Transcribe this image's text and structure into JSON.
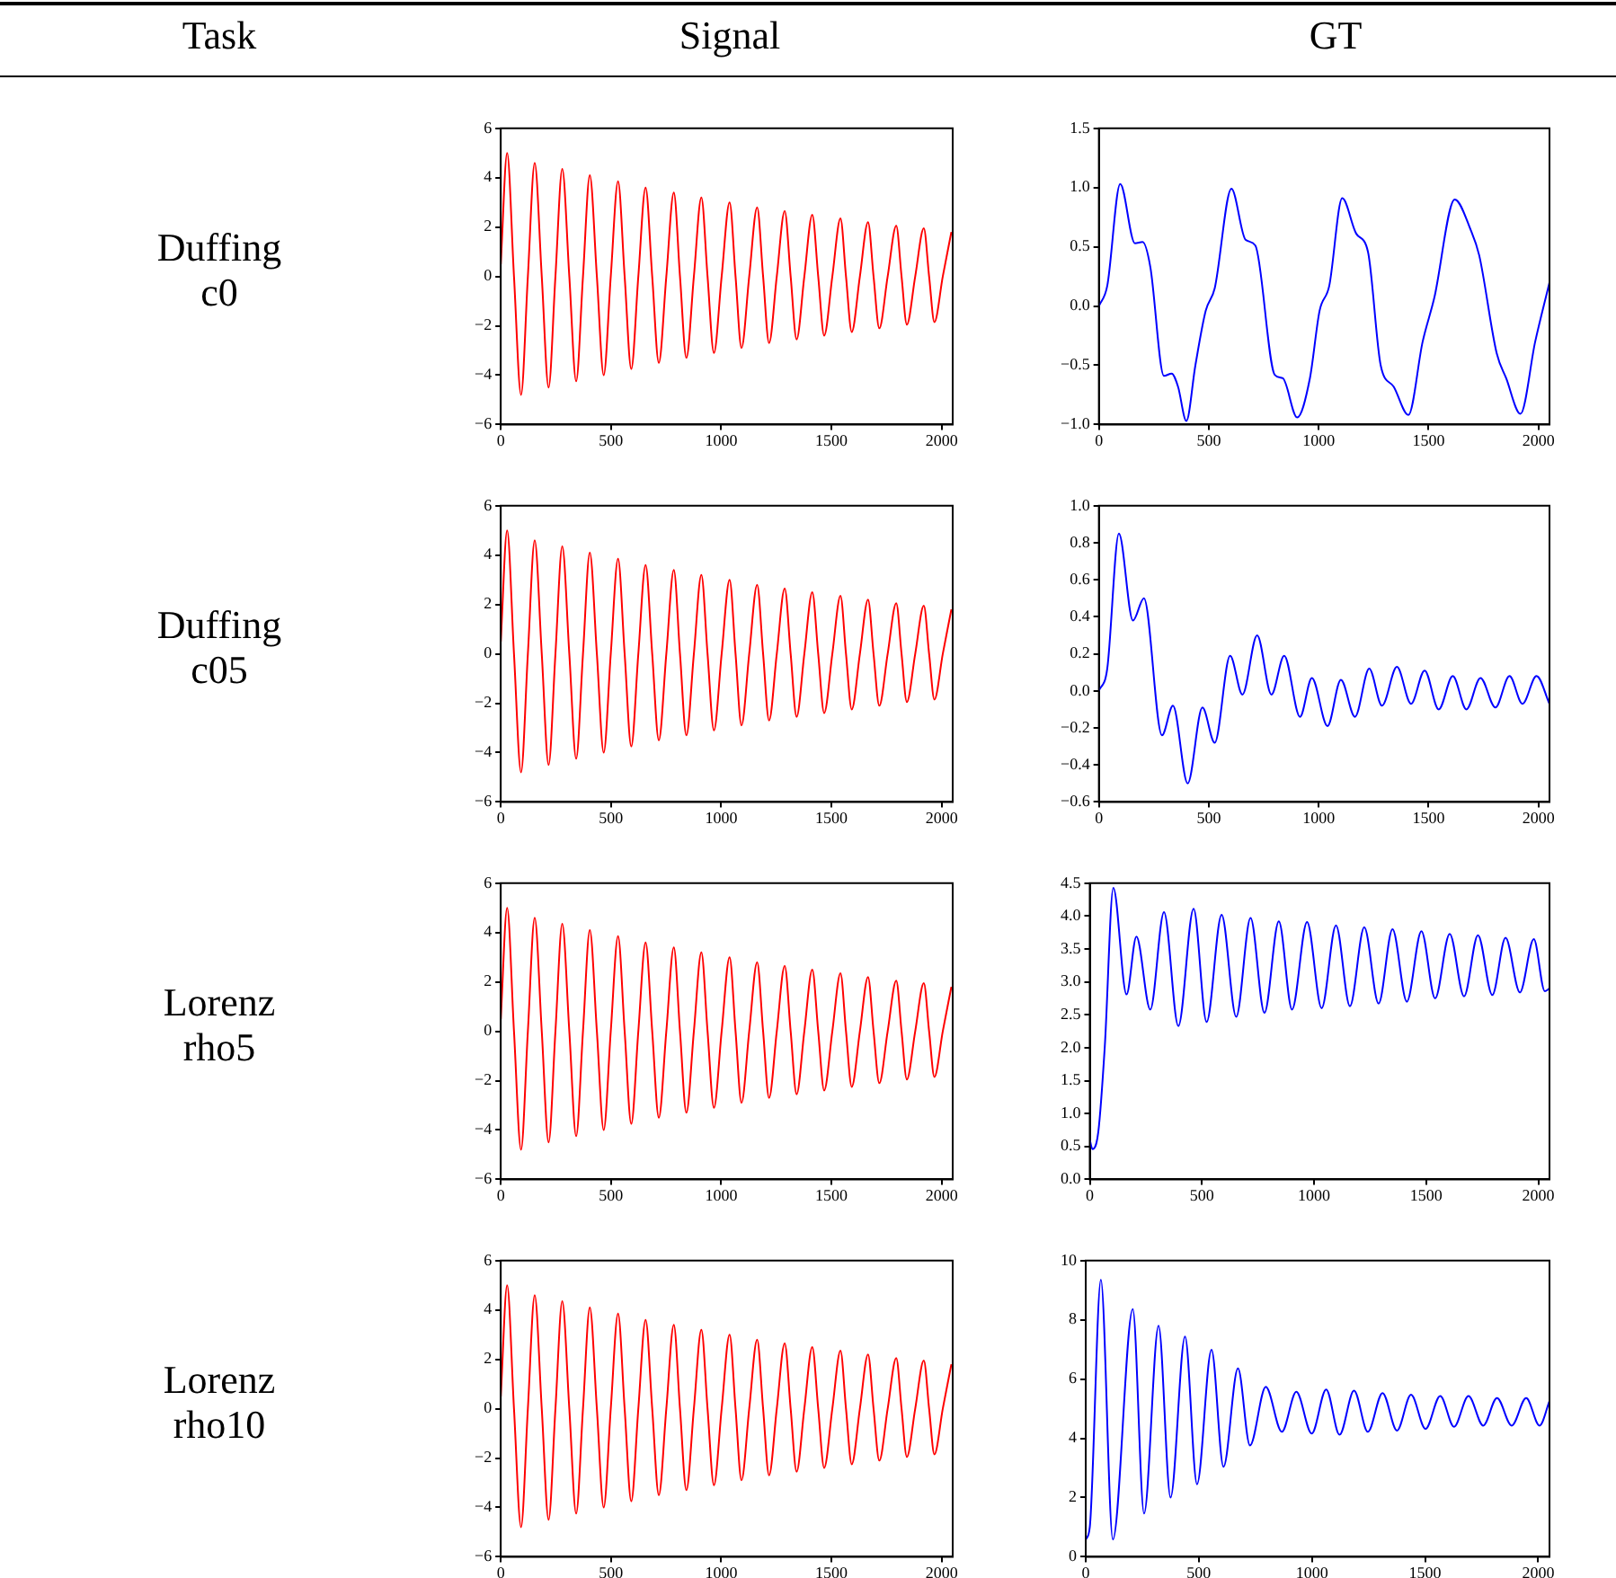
{
  "chart_data": [
    {
      "type": "other",
      "annotations": [
        "Task",
        "Signal",
        "GT",
        "Duffing c0",
        "Duffing c05",
        "Lorenz rho5",
        "Lorenz rho10"
      ]
    },
    {
      "type": "line",
      "color": "#ff0000",
      "xlim": [
        0,
        2050
      ],
      "xticks": [
        0,
        500,
        1000,
        1500,
        2000
      ],
      "ylim": [
        -6,
        6
      ],
      "yticks": [
        {
          "value": -6,
          "label": "−6"
        },
        {
          "value": -4,
          "label": "−4"
        },
        {
          "value": -2,
          "label": "−2"
        },
        0,
        2,
        4,
        6
      ],
      "x": [
        0,
        29,
        60,
        92,
        123,
        154,
        186,
        217,
        248,
        279,
        311,
        342,
        373,
        404,
        436,
        467,
        499,
        532,
        562,
        592,
        624,
        657,
        687,
        717,
        751,
        785,
        813,
        842,
        876,
        910,
        938,
        967,
        1002,
        1038,
        1065,
        1092,
        1127,
        1163,
        1190,
        1217,
        1252,
        1288,
        1315,
        1342,
        1377,
        1413,
        1440,
        1467,
        1504,
        1541,
        1566,
        1592,
        1629,
        1666,
        1691,
        1717,
        1755,
        1794,
        1818,
        1842,
        1880,
        1919,
        1943,
        1967,
        2005,
        2044
      ],
      "values": [
        0.5,
        5.0,
        0,
        -4.8,
        0,
        4.6,
        0,
        -4.5,
        0,
        4.35,
        0,
        -4.25,
        0,
        4.1,
        0,
        -4.0,
        0,
        3.85,
        0,
        -3.75,
        0,
        3.6,
        0,
        -3.5,
        0,
        3.4,
        0,
        -3.3,
        0,
        3.2,
        0,
        -3.1,
        0,
        3.0,
        0,
        -2.9,
        0,
        2.8,
        0,
        -2.7,
        0,
        2.65,
        0,
        -2.55,
        0,
        2.5,
        0,
        -2.4,
        0,
        2.35,
        0,
        -2.25,
        0,
        2.2,
        0,
        -2.1,
        0,
        2.05,
        0,
        -1.95,
        0,
        1.95,
        0,
        -1.85,
        0,
        1.8
      ]
    },
    {
      "type": "line",
      "color": "#0000ff",
      "xlim": [
        0,
        2050
      ],
      "xticks": [
        0,
        500,
        1000,
        1500,
        2000
      ],
      "ylim": [
        -1,
        1.5
      ],
      "yticks": [
        {
          "value": -1,
          "label": "−1.0"
        },
        {
          "value": -0.5,
          "label": "−0.5"
        },
        {
          "value": 0,
          "label": "0.0"
        },
        0.5,
        {
          "value": 1,
          "label": "1.0"
        },
        1.5
      ],
      "x": [
        0,
        38,
        97,
        164,
        199,
        234,
        296,
        331,
        360,
        398,
        439,
        486,
        527,
        603,
        667,
        712,
        800,
        837,
        902,
        960,
        1004,
        1048,
        1107,
        1171,
        1224,
        1282,
        1341,
        1408,
        1473,
        1526,
        1619,
        1692,
        1730,
        1810,
        1853,
        1918,
        1985,
        2050
      ],
      "values": [
        0,
        0.17,
        1.03,
        0.53,
        0.54,
        0.33,
        -0.59,
        -0.57,
        -0.68,
        -0.97,
        -0.5,
        -0.04,
        0.15,
        0.99,
        0.56,
        0.51,
        -0.58,
        -0.61,
        -0.94,
        -0.61,
        -0.04,
        0.17,
        0.91,
        0.61,
        0.46,
        -0.5,
        -0.68,
        -0.92,
        -0.3,
        0.07,
        0.9,
        0.64,
        0.43,
        -0.4,
        -0.61,
        -0.91,
        -0.3,
        0.2
      ]
    },
    {
      "type": "line",
      "color": "#ff0000",
      "xlim": [
        0,
        2050
      ],
      "xticks": [
        0,
        500,
        1000,
        1500,
        2000
      ],
      "ylim": [
        -6,
        6
      ],
      "yticks": [
        {
          "value": -6,
          "label": "−6"
        },
        {
          "value": -4,
          "label": "−4"
        },
        {
          "value": -2,
          "label": "−2"
        },
        0,
        2,
        4,
        6
      ],
      "x": [
        0,
        29,
        60,
        92,
        123,
        154,
        186,
        217,
        248,
        279,
        311,
        342,
        373,
        404,
        436,
        467,
        499,
        532,
        562,
        592,
        624,
        657,
        687,
        717,
        751,
        785,
        813,
        842,
        876,
        910,
        938,
        967,
        1002,
        1038,
        1065,
        1092,
        1127,
        1163,
        1190,
        1217,
        1252,
        1288,
        1315,
        1342,
        1377,
        1413,
        1440,
        1467,
        1504,
        1541,
        1566,
        1592,
        1629,
        1666,
        1691,
        1717,
        1755,
        1794,
        1818,
        1842,
        1880,
        1919,
        1943,
        1967,
        2005,
        2044
      ],
      "values": [
        0.5,
        5.0,
        0,
        -4.8,
        0,
        4.6,
        0,
        -4.5,
        0,
        4.35,
        0,
        -4.25,
        0,
        4.1,
        0,
        -4.0,
        0,
        3.85,
        0,
        -3.75,
        0,
        3.6,
        0,
        -3.5,
        0,
        3.4,
        0,
        -3.3,
        0,
        3.2,
        0,
        -3.1,
        0,
        3.0,
        0,
        -2.9,
        0,
        2.8,
        0,
        -2.7,
        0,
        2.65,
        0,
        -2.55,
        0,
        2.5,
        0,
        -2.4,
        0,
        2.35,
        0,
        -2.25,
        0,
        2.2,
        0,
        -2.1,
        0,
        2.05,
        0,
        -1.95,
        0,
        1.95,
        0,
        -1.85,
        0,
        1.8
      ]
    },
    {
      "type": "line",
      "color": "#0000ff",
      "xlim": [
        0,
        2050
      ],
      "xticks": [
        0,
        500,
        1000,
        1500,
        2000
      ],
      "ylim": [
        -0.6,
        1.0
      ],
      "yticks": [
        {
          "value": -0.6,
          "label": "−0.6"
        },
        {
          "value": -0.4,
          "label": "−0.4"
        },
        {
          "value": -0.2,
          "label": "−0.2"
        },
        {
          "value": 0,
          "label": "0.0"
        },
        0.2,
        0.4,
        0.6,
        0.8,
        {
          "value": 1,
          "label": "1.0"
        }
      ],
      "x": [
        0,
        38,
        91,
        155,
        205,
        287,
        337,
        404,
        471,
        527,
        597,
        653,
        720,
        785,
        843,
        915,
        969,
        1040,
        1101,
        1165,
        1230,
        1288,
        1356,
        1420,
        1482,
        1546,
        1610,
        1672,
        1736,
        1804,
        1868,
        1927,
        1991,
        2050
      ],
      "values": [
        0,
        0.12,
        0.85,
        0.38,
        0.5,
        -0.24,
        -0.08,
        -0.5,
        -0.09,
        -0.28,
        0.19,
        -0.02,
        0.3,
        -0.02,
        0.19,
        -0.14,
        0.07,
        -0.19,
        0.06,
        -0.14,
        0.12,
        -0.08,
        0.13,
        -0.07,
        0.11,
        -0.1,
        0.08,
        -0.1,
        0.07,
        -0.09,
        0.08,
        -0.07,
        0.08,
        -0.07
      ]
    },
    {
      "type": "line",
      "color": "#ff0000",
      "xlim": [
        0,
        2050
      ],
      "xticks": [
        0,
        500,
        1000,
        1500,
        2000
      ],
      "ylim": [
        -6,
        6
      ],
      "yticks": [
        {
          "value": -6,
          "label": "−6"
        },
        {
          "value": -4,
          "label": "−4"
        },
        {
          "value": -2,
          "label": "−2"
        },
        0,
        2,
        4,
        6
      ],
      "x": [
        0,
        29,
        60,
        92,
        123,
        154,
        186,
        217,
        248,
        279,
        311,
        342,
        373,
        404,
        436,
        467,
        499,
        532,
        562,
        592,
        624,
        657,
        687,
        717,
        751,
        785,
        813,
        842,
        876,
        910,
        938,
        967,
        1002,
        1038,
        1065,
        1092,
        1127,
        1163,
        1190,
        1217,
        1252,
        1288,
        1315,
        1342,
        1377,
        1413,
        1440,
        1467,
        1504,
        1541,
        1566,
        1592,
        1629,
        1666,
        1691,
        1717,
        1755,
        1794,
        1818,
        1842,
        1880,
        1919,
        1943,
        1967,
        2005,
        2044
      ],
      "values": [
        0.5,
        5.0,
        0,
        -4.8,
        0,
        4.6,
        0,
        -4.5,
        0,
        4.35,
        0,
        -4.25,
        0,
        4.1,
        0,
        -4.0,
        0,
        3.85,
        0,
        -3.75,
        0,
        3.6,
        0,
        -3.5,
        0,
        3.4,
        0,
        -3.3,
        0,
        3.2,
        0,
        -3.1,
        0,
        3.0,
        0,
        -2.9,
        0,
        2.8,
        0,
        -2.7,
        0,
        2.65,
        0,
        -2.55,
        0,
        2.5,
        0,
        -2.4,
        0,
        2.35,
        0,
        -2.25,
        0,
        2.2,
        0,
        -2.1,
        0,
        2.05,
        0,
        -1.95,
        0,
        1.95,
        0,
        -1.85,
        0,
        1.8
      ]
    },
    {
      "type": "line",
      "color": "#0000ff",
      "xlim": [
        0,
        2050
      ],
      "xticks": [
        0,
        500,
        1000,
        1500,
        2000
      ],
      "ylim": [
        0,
        4.5
      ],
      "yticks": [
        {
          "value": 0,
          "label": "0.0"
        },
        0.5,
        {
          "value": 1,
          "label": "1.0"
        },
        1.5,
        {
          "value": 2,
          "label": "2.0"
        },
        2.5,
        {
          "value": 3,
          "label": "3.0"
        },
        3.5,
        {
          "value": 4,
          "label": "4.0"
        },
        4.5
      ],
      "x": [
        0,
        12,
        38,
        67,
        105,
        164,
        208,
        270,
        331,
        395,
        463,
        521,
        588,
        653,
        717,
        779,
        843,
        902,
        969,
        1034,
        1098,
        1160,
        1224,
        1288,
        1350,
        1414,
        1479,
        1540,
        1605,
        1669,
        1731,
        1795,
        1854,
        1918,
        1980,
        2029,
        2050
      ],
      "values": [
        0.6,
        0.46,
        0.72,
        2.02,
        4.43,
        2.81,
        3.69,
        2.58,
        4.06,
        2.33,
        4.11,
        2.39,
        4.02,
        2.47,
        3.97,
        2.53,
        3.92,
        2.58,
        3.91,
        2.6,
        3.86,
        2.63,
        3.83,
        2.67,
        3.8,
        2.7,
        3.77,
        2.75,
        3.73,
        2.78,
        3.71,
        2.8,
        3.67,
        2.84,
        3.65,
        2.86,
        2.9
      ]
    },
    {
      "type": "line",
      "color": "#ff0000",
      "xlim": [
        0,
        2050
      ],
      "xticks": [
        0,
        500,
        1000,
        1500,
        2000
      ],
      "ylim": [
        -6,
        6
      ],
      "yticks": [
        {
          "value": -6,
          "label": "−6"
        },
        {
          "value": -4,
          "label": "−4"
        },
        {
          "value": -2,
          "label": "−2"
        },
        0,
        2,
        4,
        6
      ],
      "x": [
        0,
        29,
        60,
        92,
        123,
        154,
        186,
        217,
        248,
        279,
        311,
        342,
        373,
        404,
        436,
        467,
        499,
        532,
        562,
        592,
        624,
        657,
        687,
        717,
        751,
        785,
        813,
        842,
        876,
        910,
        938,
        967,
        1002,
        1038,
        1065,
        1092,
        1127,
        1163,
        1190,
        1217,
        1252,
        1288,
        1315,
        1342,
        1377,
        1413,
        1440,
        1467,
        1504,
        1541,
        1566,
        1592,
        1629,
        1666,
        1691,
        1717,
        1755,
        1794,
        1818,
        1842,
        1880,
        1919,
        1943,
        1967,
        2005,
        2044
      ],
      "values": [
        0.5,
        5.0,
        0,
        -4.8,
        0,
        4.6,
        0,
        -4.5,
        0,
        4.35,
        0,
        -4.25,
        0,
        4.1,
        0,
        -4.0,
        0,
        3.85,
        0,
        -3.75,
        0,
        3.6,
        0,
        -3.5,
        0,
        3.4,
        0,
        -3.3,
        0,
        3.2,
        0,
        -3.1,
        0,
        3.0,
        0,
        -2.9,
        0,
        2.8,
        0,
        -2.7,
        0,
        2.65,
        0,
        -2.55,
        0,
        2.5,
        0,
        -2.4,
        0,
        2.35,
        0,
        -2.25,
        0,
        2.2,
        0,
        -2.1,
        0,
        2.05,
        0,
        -1.95,
        0,
        1.95,
        0,
        -1.85,
        0,
        1.8
      ]
    },
    {
      "type": "line",
      "color": "#0000ff",
      "xlim": [
        0,
        2050
      ],
      "xticks": [
        0,
        500,
        1000,
        1500,
        2000
      ],
      "ylim": [
        0,
        10
      ],
      "yticks": [
        0,
        2,
        4,
        6,
        8,
        10
      ],
      "x": [
        0,
        18,
        67,
        120,
        208,
        258,
        322,
        375,
        439,
        492,
        556,
        609,
        673,
        726,
        796,
        867,
        931,
        999,
        1063,
        1122,
        1186,
        1247,
        1312,
        1376,
        1438,
        1502,
        1567,
        1628,
        1692,
        1757,
        1818,
        1883,
        1947,
        2006,
        2050
      ],
      "values": [
        0.58,
        1.0,
        9.36,
        0.58,
        8.36,
        1.46,
        7.8,
        2.0,
        7.44,
        2.45,
        6.99,
        3.04,
        6.36,
        3.76,
        5.74,
        4.22,
        5.57,
        4.16,
        5.65,
        4.12,
        5.61,
        4.22,
        5.53,
        4.26,
        5.47,
        4.32,
        5.43,
        4.39,
        5.43,
        4.43,
        5.36,
        4.43,
        5.36,
        4.43,
        5.26
      ]
    }
  ]
}
